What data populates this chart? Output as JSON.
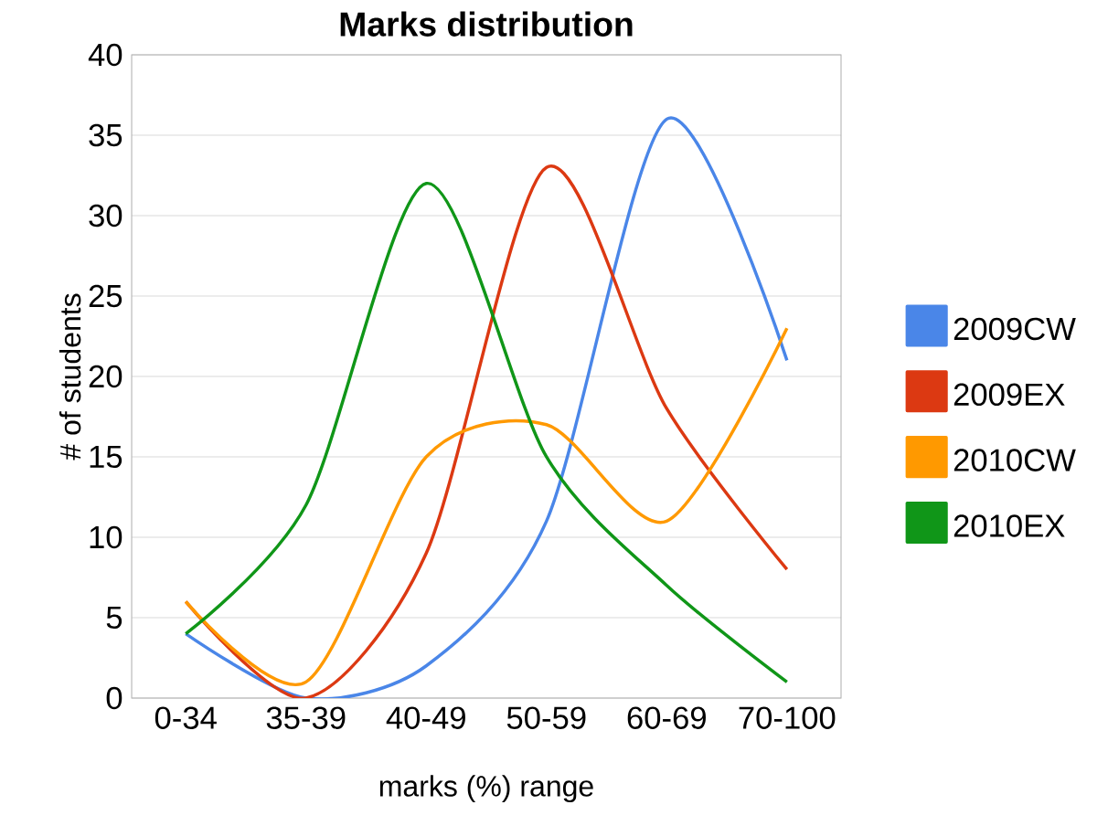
{
  "chart_data": {
    "type": "line",
    "title": "Marks distribution",
    "xlabel": "marks (%) range",
    "ylabel": "# of students",
    "categories": [
      "0-34",
      "35-39",
      "40-49",
      "50-59",
      "60-69",
      "70-100"
    ],
    "series": [
      {
        "name": "2009CW",
        "color": "#4a86e8",
        "values": [
          4,
          0,
          2,
          11,
          36,
          21
        ]
      },
      {
        "name": "2009EX",
        "color": "#dc3912",
        "values": [
          6,
          0,
          9,
          33,
          18,
          8
        ]
      },
      {
        "name": "2010CW",
        "color": "#ff9900",
        "values": [
          6,
          1,
          15,
          17,
          11,
          23
        ]
      },
      {
        "name": "2010EX",
        "color": "#109618",
        "values": [
          4,
          12,
          32,
          15,
          7,
          1
        ]
      }
    ],
    "ylim": [
      0,
      40
    ],
    "yticks": [
      0,
      5,
      10,
      15,
      20,
      25,
      30,
      35,
      40
    ],
    "grid": "y",
    "legend": "right",
    "marker": "none",
    "line_style": "solid"
  }
}
